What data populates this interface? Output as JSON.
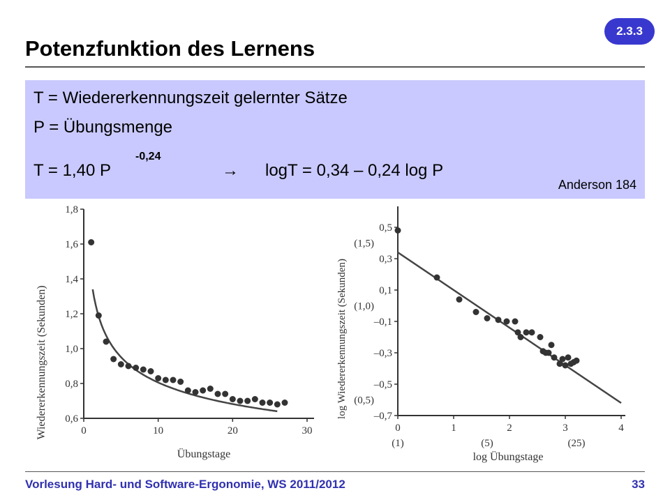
{
  "slide": {
    "title": "Potenzfunktion des Lernens",
    "badge": "2.3.3",
    "footer": "Vorlesung Hard- und Software-Ergonomie, WS 2011/2012",
    "page_number": "33"
  },
  "infobox": {
    "line1": "T = Wiedererkennungszeit gelernter Sätze",
    "line2": "P = Übungsmenge",
    "formula_left": "T = 1,40 P",
    "formula_exponent": "-0,24",
    "arrow": "→",
    "formula_right": "logT = 0,34 – 0,24 log P",
    "source": "Anderson 184"
  },
  "chart_data": [
    {
      "type": "scatter",
      "xlabel": "Übungstage",
      "ylabel": "Wiedererkennungszeit (Sekunden)",
      "xlim": [
        0,
        30
      ],
      "ylim": [
        0.6,
        1.8
      ],
      "xticks": [
        "0",
        "10",
        "20",
        "30"
      ],
      "yticks": [
        "0,6",
        "0,8",
        "1,0",
        "1,2",
        "1,4",
        "1,6",
        "1,8"
      ],
      "points": [
        [
          1,
          1.61
        ],
        [
          2,
          1.19
        ],
        [
          3,
          1.04
        ],
        [
          4,
          0.94
        ],
        [
          5,
          0.91
        ],
        [
          6,
          0.9
        ],
        [
          7,
          0.89
        ],
        [
          8,
          0.88
        ],
        [
          9,
          0.87
        ],
        [
          10,
          0.83
        ],
        [
          11,
          0.82
        ],
        [
          12,
          0.82
        ],
        [
          13,
          0.81
        ],
        [
          14,
          0.76
        ],
        [
          15,
          0.75
        ],
        [
          16,
          0.76
        ],
        [
          17,
          0.77
        ],
        [
          18,
          0.74
        ],
        [
          19,
          0.74
        ],
        [
          20,
          0.71
        ],
        [
          21,
          0.7
        ],
        [
          22,
          0.7
        ],
        [
          23,
          0.71
        ],
        [
          24,
          0.69
        ],
        [
          25,
          0.69
        ],
        [
          26,
          0.68
        ],
        [
          27,
          0.69
        ]
      ],
      "curve": {
        "a": 1.4,
        "b": -0.24
      },
      "series": [
        {
          "name": "",
          "values": []
        }
      ]
    },
    {
      "type": "scatter",
      "xlabel": "log Übungstage",
      "ylabel": "log Wiedererkennungszeit (Sekunden)",
      "xlim": [
        0,
        4
      ],
      "ylim": [
        -0.7,
        0.5
      ],
      "xticks": [
        "0",
        "1",
        "2",
        "3",
        "4"
      ],
      "xticks_secondary": [
        "(1)",
        "(5)",
        "(25)"
      ],
      "yticks": [
        "0,5",
        "0,3",
        "0,1",
        "–0,1",
        "–0,3",
        "–0,5",
        "–0,7"
      ],
      "yticks_secondary": [
        "(1,5)",
        "(1,0)",
        "(0,5)"
      ],
      "points": [
        [
          0.0,
          0.48
        ],
        [
          0.7,
          0.18
        ],
        [
          1.1,
          0.04
        ],
        [
          1.4,
          -0.04
        ],
        [
          1.6,
          -0.08
        ],
        [
          1.8,
          -0.09
        ],
        [
          1.95,
          -0.1
        ],
        [
          2.1,
          -0.1
        ],
        [
          2.15,
          -0.17
        ],
        [
          2.2,
          -0.2
        ],
        [
          2.3,
          -0.17
        ],
        [
          2.4,
          -0.17
        ],
        [
          2.55,
          -0.2
        ],
        [
          2.6,
          -0.29
        ],
        [
          2.65,
          -0.3
        ],
        [
          2.7,
          -0.3
        ],
        [
          2.75,
          -0.25
        ],
        [
          2.8,
          -0.33
        ],
        [
          2.9,
          -0.37
        ],
        [
          2.95,
          -0.34
        ],
        [
          3.0,
          -0.38
        ],
        [
          3.05,
          -0.33
        ],
        [
          3.1,
          -0.37
        ],
        [
          3.15,
          -0.36
        ],
        [
          3.2,
          -0.35
        ]
      ],
      "line": {
        "intercept": 0.34,
        "slope": -0.24
      }
    }
  ]
}
